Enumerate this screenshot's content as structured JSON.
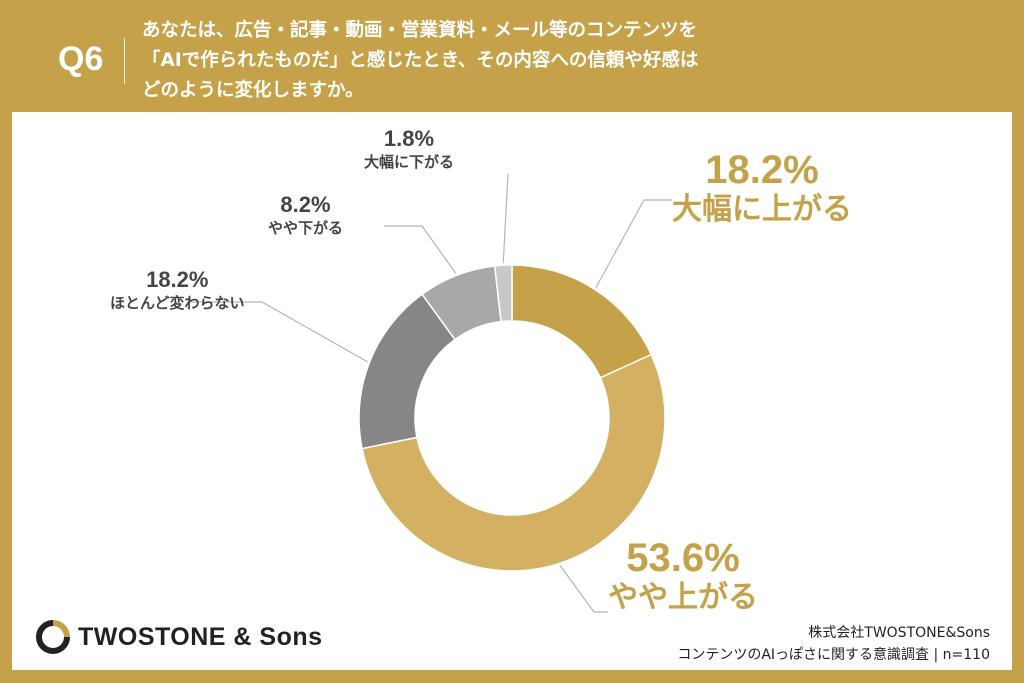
{
  "question": {
    "label": "Q6",
    "lines": [
      "あなたは、広告・記事・動画・営業資料・メール等のコンテンツを",
      "「AIで作られたものだ」と感じたとき、その内容への信頼や好感は",
      "どのように変化しますか。"
    ]
  },
  "chart_data": {
    "type": "pie",
    "donut": true,
    "categories": [
      "大幅に上がる",
      "やや上がる",
      "ほとんど変わらない",
      "やや下がる",
      "大幅に下がる"
    ],
    "values": [
      18.2,
      53.6,
      18.2,
      8.2,
      1.8
    ],
    "value_labels": [
      "18.2%",
      "53.6%",
      "18.2%",
      "8.2%",
      "1.8%"
    ],
    "colors": [
      "#c5a24a",
      "#d4b062",
      "#868686",
      "#a8a8a8",
      "#c8c8c8"
    ],
    "start": "12 o'clock, clockwise"
  },
  "logo": {
    "text": "TWOSTONE & Sons"
  },
  "credit": {
    "company": "株式会社TWOSTONE&Sons",
    "survey": "コンテンツのAIっぽさに関する意識調査 | n=110"
  },
  "theme": {
    "background": "#c5a24a",
    "card": "#ffffff",
    "accent": "#c5a24a"
  }
}
